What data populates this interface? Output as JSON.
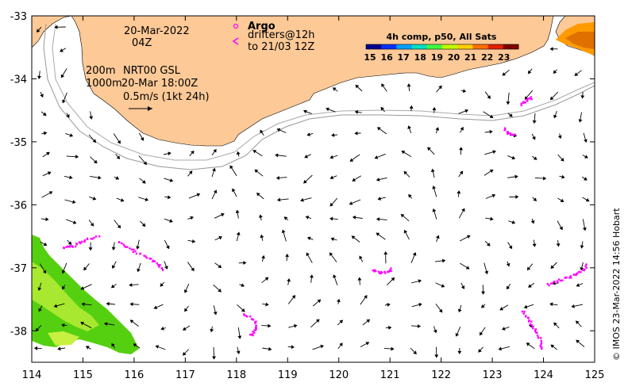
{
  "map": {
    "lon_range": [
      114,
      125
    ],
    "lat_range": [
      -38.5,
      -33
    ],
    "x_ticks": [
      "114",
      "115",
      "116",
      "117",
      "118",
      "119",
      "120",
      "121",
      "122",
      "123",
      "124",
      "125"
    ],
    "y_ticks": [
      "-33",
      "-34",
      "-35",
      "-36",
      "-37",
      "-38"
    ],
    "land_color": "#fcc997",
    "float_color": "#ff00ff"
  },
  "info": {
    "date": "20-Mar-2022",
    "hour": "04Z",
    "depth_200": "200m",
    "depth_1000": "1000m",
    "product": "NRT00 GSL",
    "product_time": "20-Mar 18:00Z",
    "scale": "0.5m/s (1kt 24h)"
  },
  "argo": {
    "title": "Argo",
    "drifters": "drifters@12h",
    "until": "to 21/03 12Z"
  },
  "colorbar": {
    "title": "4h comp, p50, All Sats",
    "ticks": [
      "15",
      "16",
      "17",
      "18",
      "19",
      "20",
      "21",
      "22",
      "23"
    ],
    "colors": [
      "#00008f",
      "#0030ff",
      "#00a0ff",
      "#00e0c0",
      "#40ff40",
      "#c0ff00",
      "#ffd000",
      "#ff7000",
      "#e02000",
      "#800000"
    ]
  },
  "credit": "© IMOS 23-Mar-2022 14:56 Hobart"
}
